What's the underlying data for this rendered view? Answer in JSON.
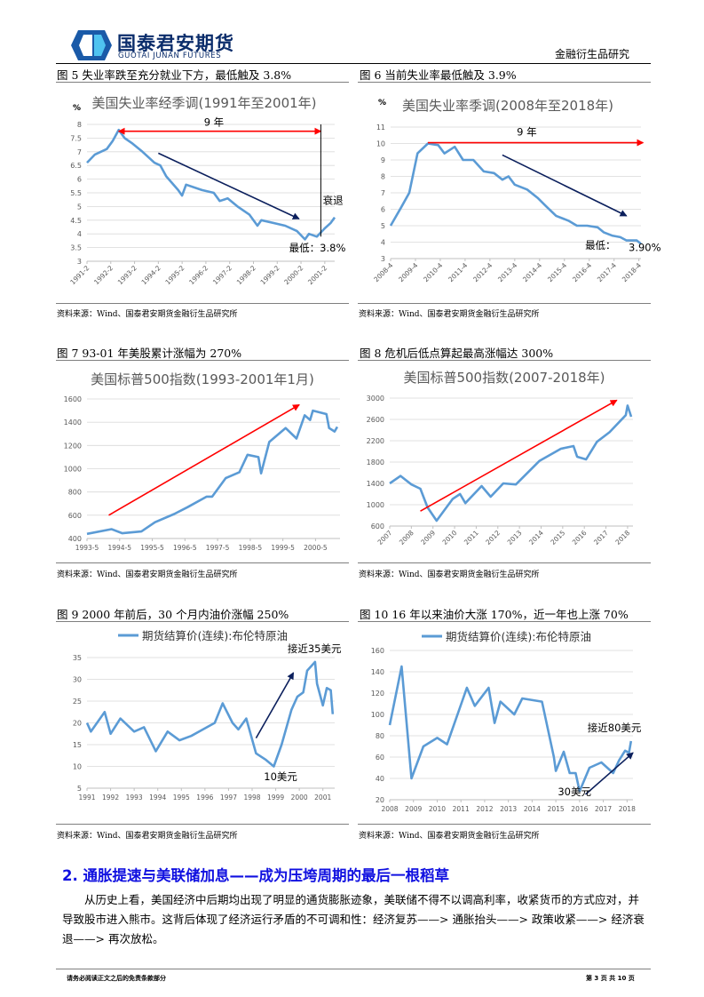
{
  "header": {
    "logo_cn": "国泰君安期货",
    "logo_en": "GUOTAI JUNAN FUTURES",
    "section_label": "金融衍生品研究",
    "brand_color": "#1a5aa8"
  },
  "figures": [
    {
      "caption": "图 5 失业率跌至充分就业下方，最低触及 3.8%",
      "source": "资料来源：Wind、国泰君安期货金融衍生品研究所"
    },
    {
      "caption": "图 6 当前失业率最低触及 3.9%",
      "source": "资料来源：Wind、国泰君安期货金融衍生品研究所"
    },
    {
      "caption": "图 7 93-01 年美股累计涨幅为 270%",
      "source": "资料来源：Wind、国泰君安期货金融衍生品研究所"
    },
    {
      "caption": "图 8 危机后低点算起最高涨幅达 300%",
      "source": "资料来源：Wind、国泰君安期货金融衍生品研究所"
    },
    {
      "caption": "图 9 2000 年前后，30 个月内油价涨幅 250%",
      "source": "资料来源：Wind、国泰君安期货金融衍生品研究所"
    },
    {
      "caption": "图 10 16 年以来油价大涨 170%，近一年也上涨 70%",
      "source": "资料来源：Wind、国泰君安期货金融衍生品研究所"
    }
  ],
  "chart_data": [
    {
      "type": "line",
      "title": "美国失业率经季调(1991年至2001年)",
      "ylabel": "%",
      "xlim": [
        "1991-02",
        "2001-07"
      ],
      "ylim": [
        3,
        8
      ],
      "grid": true,
      "line_color": "#5b9bd5",
      "x_ticks": [
        "1991-2",
        "1992-2",
        "1993-2",
        "1994-2",
        "1995-2",
        "1996-2",
        "1997-2",
        "1998-2",
        "1999-2",
        "2000-2",
        "2001-2"
      ],
      "y_ticks": [
        3,
        3.5,
        4,
        4.5,
        5,
        5.5,
        6,
        6.5,
        7,
        7.5,
        8
      ],
      "series": [
        {
          "x": [
            "1991-02",
            "1991-06",
            "1991-12",
            "1992-03",
            "1992-06",
            "1992-09",
            "1993-01",
            "1993-06",
            "1993-12",
            "1994-03",
            "1994-06",
            "1994-12",
            "1995-02",
            "1995-04",
            "1995-12",
            "1996-06",
            "1996-09",
            "1997-01",
            "1997-06",
            "1997-12",
            "1998-04",
            "1998-06",
            "1998-12",
            "1999-06",
            "1999-12",
            "2000-04",
            "2000-06",
            "2000-10",
            "2001-02",
            "2001-05",
            "2001-07"
          ],
          "y": [
            6.6,
            6.9,
            7.1,
            7.4,
            7.8,
            7.5,
            7.3,
            7.0,
            6.6,
            6.5,
            6.1,
            5.6,
            5.4,
            5.8,
            5.6,
            5.5,
            5.2,
            5.3,
            5.0,
            4.7,
            4.3,
            4.5,
            4.4,
            4.3,
            4.1,
            3.8,
            4.0,
            3.9,
            4.2,
            4.4,
            4.6
          ]
        }
      ],
      "annotations": [
        {
          "kind": "double-arrow",
          "color": "#ff0000",
          "from": [
            "1992-06",
            7.75
          ],
          "to": [
            "2000-12",
            7.75
          ]
        },
        {
          "kind": "text",
          "text": "9 年",
          "at": [
            "1996-01",
            7.95
          ]
        },
        {
          "kind": "vline",
          "color": "#000000",
          "from": [
            "2000-12",
            8.0
          ],
          "to": [
            "2000-12",
            3.9
          ]
        },
        {
          "kind": "arrow",
          "color": "#0b1f5c",
          "from": [
            "1994-02",
            6.95
          ],
          "to": [
            "2000-00",
            4.55
          ]
        },
        {
          "kind": "text",
          "text": "衰退",
          "at": [
            "2001-01",
            5.1
          ]
        },
        {
          "kind": "text",
          "text": "最低：3.8%",
          "at": [
            "1999-08",
            3.35
          ]
        }
      ]
    },
    {
      "type": "line",
      "title": "美国失业率季调(2008年至2018年)",
      "ylabel": "%",
      "xlim": [
        "2008-04",
        "2018-05"
      ],
      "ylim": [
        3,
        11
      ],
      "grid": true,
      "line_color": "#5b9bd5",
      "x_ticks": [
        "2008-4",
        "2009-4",
        "2010-4",
        "2011-4",
        "2012-4",
        "2013-4",
        "2014-4",
        "2015-4",
        "2016-4",
        "2017-4",
        "2018-4"
      ],
      "y_ticks": [
        3,
        4,
        5,
        6,
        7,
        8,
        9,
        10,
        11
      ],
      "series": [
        {
          "x": [
            "2008-04",
            "2008-09",
            "2009-01",
            "2009-05",
            "2009-10",
            "2010-03",
            "2010-06",
            "2010-11",
            "2011-03",
            "2011-08",
            "2012-01",
            "2012-06",
            "2012-10",
            "2013-01",
            "2013-04",
            "2013-10",
            "2014-03",
            "2014-07",
            "2014-12",
            "2015-06",
            "2015-10",
            "2016-03",
            "2016-08",
            "2016-11",
            "2017-03",
            "2017-07",
            "2017-10",
            "2018-03",
            "2018-05"
          ],
          "y": [
            5.0,
            6.1,
            7.0,
            9.4,
            10.0,
            9.9,
            9.4,
            9.8,
            9.0,
            9.0,
            8.3,
            8.2,
            7.8,
            8.0,
            7.5,
            7.2,
            6.7,
            6.2,
            5.6,
            5.3,
            5.0,
            5.0,
            4.9,
            4.6,
            4.4,
            4.3,
            4.1,
            4.1,
            3.9
          ]
        }
      ],
      "annotations": [
        {
          "kind": "arrow",
          "color": "#ff0000",
          "from": [
            "2009-10",
            10.05
          ],
          "to": [
            "2018-06",
            10.05
          ]
        },
        {
          "kind": "text",
          "text": "9 年",
          "at": [
            "2013-05",
            10.5
          ]
        },
        {
          "kind": "arrow",
          "color": "#0b1f5c",
          "from": [
            "2012-10",
            9.3
          ],
          "to": [
            "2017-10",
            5.6
          ]
        },
        {
          "kind": "text",
          "text": "最低：",
          "at": [
            "2016-02",
            3.6
          ]
        },
        {
          "kind": "text",
          "text": "3.90%",
          "at": [
            "2017-11",
            3.45
          ]
        }
      ]
    },
    {
      "type": "line",
      "title": "美国标普500指数(1993-2001年1月)",
      "xlim": [
        "1993-05",
        "2001-02"
      ],
      "ylim": [
        400,
        1600
      ],
      "grid": true,
      "line_color": "#5b9bd5",
      "x_ticks": [
        "1993-5",
        "1994-5",
        "1995-5",
        "1996-5",
        "1997-5",
        "1998-5",
        "1999-5",
        "2000-5"
      ],
      "y_ticks": [
        400,
        600,
        800,
        1000,
        1200,
        1400,
        1600
      ],
      "series": [
        {
          "x": [
            "1993-05",
            "1994-02",
            "1994-06",
            "1995-01",
            "1995-06",
            "1996-01",
            "1996-06",
            "1997-01",
            "1997-03",
            "1997-08",
            "1998-01",
            "1998-04",
            "1998-08",
            "1998-09",
            "1998-12",
            "1999-06",
            "1999-10",
            "2000-01",
            "2000-03",
            "2000-04",
            "2000-09",
            "2000-10",
            "2000-12",
            "2001-01"
          ],
          "y": [
            440,
            480,
            445,
            460,
            540,
            610,
            670,
            760,
            760,
            920,
            970,
            1120,
            1100,
            960,
            1230,
            1350,
            1260,
            1460,
            1420,
            1500,
            1470,
            1350,
            1320,
            1360
          ]
        }
      ],
      "annotations": [
        {
          "kind": "arrow",
          "color": "#ff0000",
          "from": [
            "1994-01",
            600
          ],
          "to": [
            "1999-11",
            1550
          ]
        }
      ]
    },
    {
      "type": "line",
      "title": "美国标普500指数(2007-2018年)",
      "xlim": [
        "2007",
        "2018-04"
      ],
      "ylim": [
        600,
        3000
      ],
      "grid": true,
      "line_color": "#5b9bd5",
      "x_ticks": [
        "2007",
        "2008",
        "2009",
        "2010",
        "2011",
        "2012",
        "2013",
        "2014",
        "2015",
        "2016",
        "2017",
        "2018"
      ],
      "y_ticks": [
        600,
        1000,
        1400,
        1800,
        2200,
        2600,
        3000
      ],
      "series": [
        {
          "x": [
            "2007-01",
            "2007-07",
            "2008-01",
            "2008-06",
            "2008-10",
            "2009-03",
            "2009-12",
            "2010-04",
            "2010-07",
            "2011-04",
            "2011-09",
            "2012-04",
            "2012-11",
            "2013-12",
            "2014-12",
            "2015-07",
            "2015-09",
            "2016-02",
            "2016-08",
            "2017-03",
            "2017-12",
            "2018-01",
            "2018-03"
          ],
          "y": [
            1400,
            1540,
            1380,
            1300,
            950,
            700,
            1110,
            1200,
            1030,
            1350,
            1150,
            1400,
            1380,
            1820,
            2050,
            2100,
            1900,
            1850,
            2180,
            2360,
            2680,
            2860,
            2650
          ]
        }
      ],
      "annotations": [
        {
          "kind": "arrow",
          "color": "#ff0000",
          "from": [
            "2008-06",
            880
          ],
          "to": [
            "2017-07",
            2960
          ]
        }
      ]
    },
    {
      "type": "line",
      "legend": "期货结算价(连续):布伦特原油",
      "legend_position": "top",
      "xlim": [
        "1991",
        "2001-07"
      ],
      "ylim": [
        5,
        35
      ],
      "grid": true,
      "line_color": "#5b9bd5",
      "x_ticks": [
        "1991",
        "1992",
        "1993",
        "1994",
        "1995",
        "1996",
        "1997",
        "1998",
        "1999",
        "2000",
        "2001"
      ],
      "y_ticks": [
        5,
        10,
        15,
        20,
        25,
        30,
        35
      ],
      "series": [
        {
          "x": [
            "1991-01",
            "1991-03",
            "1991-10",
            "1992-01",
            "1992-06",
            "1993-01",
            "1993-06",
            "1993-12",
            "1994-06",
            "1994-12",
            "1995-06",
            "1995-12",
            "1996-06",
            "1996-10",
            "1997-03",
            "1997-06",
            "1997-10",
            "1998-03",
            "1998-08",
            "1998-12",
            "1999-04",
            "1999-09",
            "1999-12",
            "2000-03",
            "2000-05",
            "2000-09",
            "2000-10",
            "2001-01",
            "2001-03",
            "2001-05",
            "2001-06"
          ],
          "y": [
            20,
            18,
            22.5,
            17.5,
            21,
            18,
            19,
            13.5,
            18,
            16,
            17,
            18.5,
            20,
            24.5,
            20,
            18.5,
            21,
            13,
            11.5,
            10,
            15,
            23,
            26,
            27,
            32,
            34,
            29,
            24,
            28,
            27.5,
            22
          ]
        }
      ],
      "annotations": [
        {
          "kind": "arrow",
          "color": "#0b1f5c",
          "from": [
            "1998-03",
            16.5
          ],
          "to": [
            "1999-10",
            31.5
          ]
        },
        {
          "kind": "text",
          "text": "接近35美元",
          "at": [
            "1999-07",
            36.2
          ]
        },
        {
          "kind": "text",
          "text": "10美元",
          "at": [
            "1998-07",
            6.8
          ]
        }
      ]
    },
    {
      "type": "line",
      "legend": "期货结算价(连续):布伦特原油",
      "legend_position": "top",
      "xlim": [
        "2008",
        "2018-04"
      ],
      "ylim": [
        20,
        160
      ],
      "grid": true,
      "line_color": "#5b9bd5",
      "x_ticks": [
        "2008",
        "2009",
        "2010",
        "2011",
        "2012",
        "2013",
        "2014",
        "2015",
        "2016",
        "2017",
        "2018"
      ],
      "y_ticks": [
        20,
        40,
        60,
        80,
        100,
        120,
        140,
        160
      ],
      "series": [
        {
          "x": [
            "2008-01",
            "2008-07",
            "2008-12",
            "2009-06",
            "2010-01",
            "2010-06",
            "2011-04",
            "2011-08",
            "2012-03",
            "2012-06",
            "2012-09",
            "2013-04",
            "2013-08",
            "2014-06",
            "2014-12",
            "2015-01",
            "2015-05",
            "2015-08",
            "2015-11",
            "2016-01",
            "2016-06",
            "2016-12",
            "2017-06",
            "2017-09",
            "2017-12",
            "2018-02",
            "2018-03"
          ],
          "y": [
            90,
            145,
            40,
            70,
            78,
            72,
            125,
            108,
            125,
            92,
            112,
            100,
            115,
            112,
            60,
            47,
            65,
            45,
            45,
            28,
            50,
            55,
            45,
            57,
            66,
            64,
            75
          ]
        }
      ],
      "annotations": [
        {
          "kind": "arrow",
          "color": "#0b1f5c",
          "from": [
            "2016-04",
            25
          ],
          "to": [
            "2018-04",
            64
          ]
        },
        {
          "kind": "text",
          "text": "接近80美元",
          "at": [
            "2016-05",
            84
          ]
        },
        {
          "kind": "text",
          "text": "30美元",
          "at": [
            "2015-02",
            24
          ]
        }
      ]
    }
  ],
  "section": {
    "heading": "2.  通胀提速与美联储加息——成为压垮周期的最后一根稻草",
    "paragraph": "从历史上看，美国经济中后期均出现了明显的通货膨胀迹象，美联储不得不以调高利率，收紧货币的方式应对，并导致股市进入熊市。这背后体现了经济运行矛盾的不可调和性：经济复苏——> 通胀抬头——> 政策收紧——> 经济衰退——> 再次放松。"
  },
  "footer": {
    "disclaimer": "请务必阅读正文之后的免责条款部分",
    "page": "第 3 页 共 10 页"
  }
}
